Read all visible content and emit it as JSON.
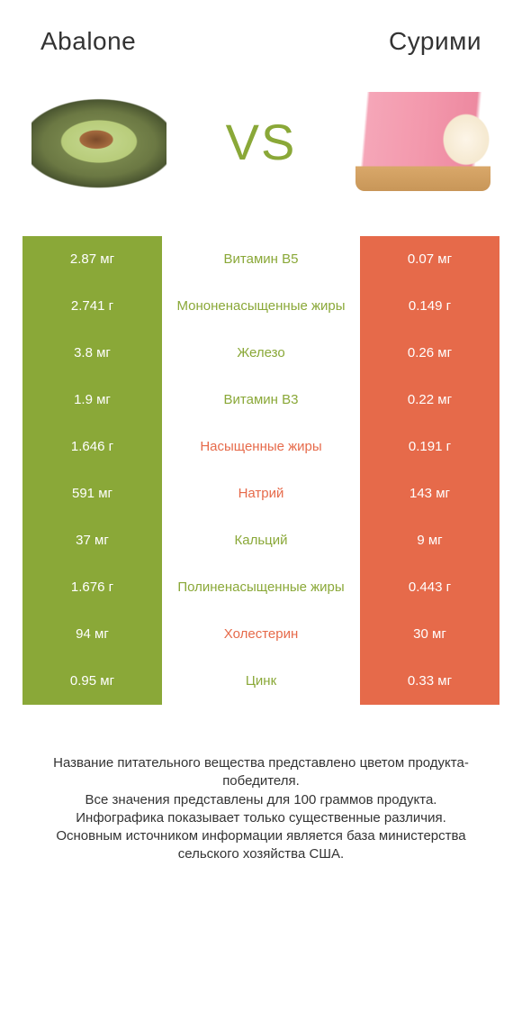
{
  "colors": {
    "green": "#8aa838",
    "orange": "#e66a4a",
    "midText_winnerLeft": "#8aa838",
    "midText_winnerRight": "#e66a4a"
  },
  "header": {
    "left": "Abalone",
    "right": "Сурими"
  },
  "vs": "VS",
  "rows": [
    {
      "left": "2.87 мг",
      "mid": "Витамин B5",
      "right": "0.07 мг",
      "winner": "left"
    },
    {
      "left": "2.741 г",
      "mid": "Мононенасыщенные жиры",
      "right": "0.149 г",
      "winner": "left"
    },
    {
      "left": "3.8 мг",
      "mid": "Железо",
      "right": "0.26 мг",
      "winner": "left"
    },
    {
      "left": "1.9 мг",
      "mid": "Витамин B3",
      "right": "0.22 мг",
      "winner": "left"
    },
    {
      "left": "1.646 г",
      "mid": "Насыщенные жиры",
      "right": "0.191 г",
      "winner": "right"
    },
    {
      "left": "591 мг",
      "mid": "Натрий",
      "right": "143 мг",
      "winner": "right"
    },
    {
      "left": "37 мг",
      "mid": "Кальций",
      "right": "9 мг",
      "winner": "left"
    },
    {
      "left": "1.676 г",
      "mid": "Полиненасыщенные жиры",
      "right": "0.443 г",
      "winner": "left"
    },
    {
      "left": "94 мг",
      "mid": "Холестерин",
      "right": "30 мг",
      "winner": "right"
    },
    {
      "left": "0.95 мг",
      "mid": "Цинк",
      "right": "0.33 мг",
      "winner": "left"
    }
  ],
  "footnote": [
    "Название питательного вещества представлено цветом продукта-победителя.",
    "Все значения представлены для 100 граммов продукта.",
    "Инфографика показывает только существенные различия.",
    "Основным источником информации является база министерства сельского хозяйства США."
  ]
}
